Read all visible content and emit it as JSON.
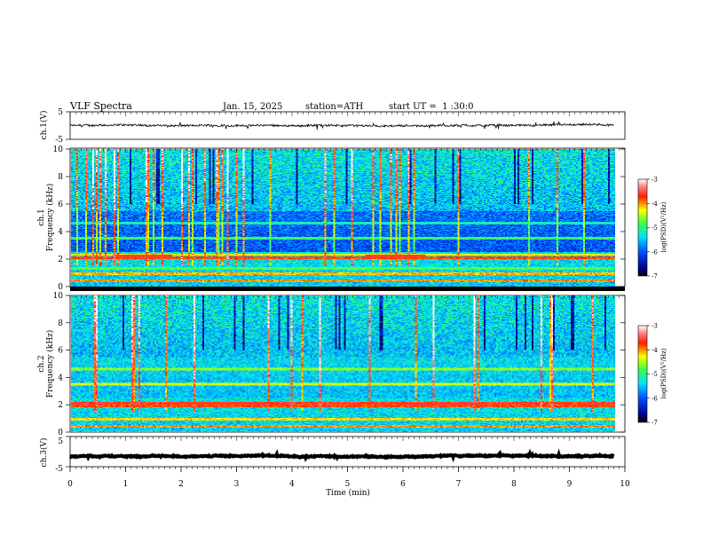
{
  "header": {
    "title": "VLF Spectra",
    "date": "Jan. 15, 2025",
    "station": "station=ATH",
    "start_ut": "start UT =  1 :30:0"
  },
  "chart_data": [
    {
      "type": "line",
      "id": "ch1-waveform",
      "ylabel": "ch.1(V)",
      "ylim": [
        -5,
        5
      ],
      "yticks": [
        "5",
        "-5"
      ],
      "xlim": [
        0,
        10
      ],
      "data_end_min": 9.8,
      "baseline": 0.0,
      "spread": 0.35
    },
    {
      "type": "heatmap",
      "id": "ch1-spectrogram",
      "ylabel_channel": "ch.1",
      "ylabel": "Frequency (kHz)",
      "ylim": [
        0,
        10
      ],
      "yticks": [
        "0",
        "2",
        "4",
        "6",
        "8",
        "10"
      ],
      "xlim": [
        0,
        10
      ],
      "data_end_min": 9.8,
      "colorbar": {
        "label": "log(PSD)(V²/Hz)",
        "range": [
          -7,
          -3
        ],
        "ticks": [
          "-3",
          "-4",
          "-5",
          "-6",
          "-7"
        ]
      },
      "tones_khz": [
        0.4,
        0.9,
        1.3,
        2.1,
        2.3,
        3.5,
        4.6
      ],
      "tone_levels": [
        -4.2,
        -4.3,
        -5.0,
        -4.0,
        -4.6,
        -5.1,
        -5.4
      ],
      "red_segments": [
        {
          "start_min": 0.8,
          "end_min": 1.8,
          "freq_khz": 2.2
        },
        {
          "start_min": 5.3,
          "end_min": 6.4,
          "freq_khz": 2.2
        }
      ]
    },
    {
      "type": "heatmap",
      "id": "ch2-spectrogram",
      "ylabel_channel": "ch.2",
      "ylabel": "Frequency (kHz)",
      "ylim": [
        0,
        10
      ],
      "yticks": [
        "0",
        "2",
        "4",
        "6",
        "8",
        "10"
      ],
      "xlim": [
        0,
        10
      ],
      "data_end_min": 9.8,
      "colorbar": {
        "label": "log(PSD)(V²/Hz)",
        "range": [
          -7,
          -3
        ],
        "ticks": [
          "-3",
          "-4",
          "-5",
          "-6",
          "-7"
        ]
      },
      "tones_khz": [
        0.4,
        0.9,
        1.9,
        2.1,
        3.5,
        4.6
      ],
      "tone_levels": [
        -4.2,
        -4.4,
        -4.0,
        -3.8,
        -4.6,
        -4.8
      ],
      "red_segments": [
        {
          "start_min": 1.8,
          "end_min": 3.5,
          "freq_khz": 2.1
        },
        {
          "start_min": 6.0,
          "end_min": 7.5,
          "freq_khz": 2.0
        }
      ]
    },
    {
      "type": "line",
      "id": "ch3-waveform",
      "ylabel": "ch.3(V)",
      "ylim": [
        -5,
        5
      ],
      "yticks": [
        "5",
        "-5"
      ],
      "xlim": [
        0,
        10
      ],
      "data_end_min": 9.8,
      "baseline": -1.5,
      "spread": 0.15
    }
  ],
  "xaxis": {
    "label": "Time (min)",
    "ticks": [
      "0",
      "1",
      "2",
      "3",
      "4",
      "5",
      "6",
      "7",
      "8",
      "9",
      "10"
    ]
  }
}
